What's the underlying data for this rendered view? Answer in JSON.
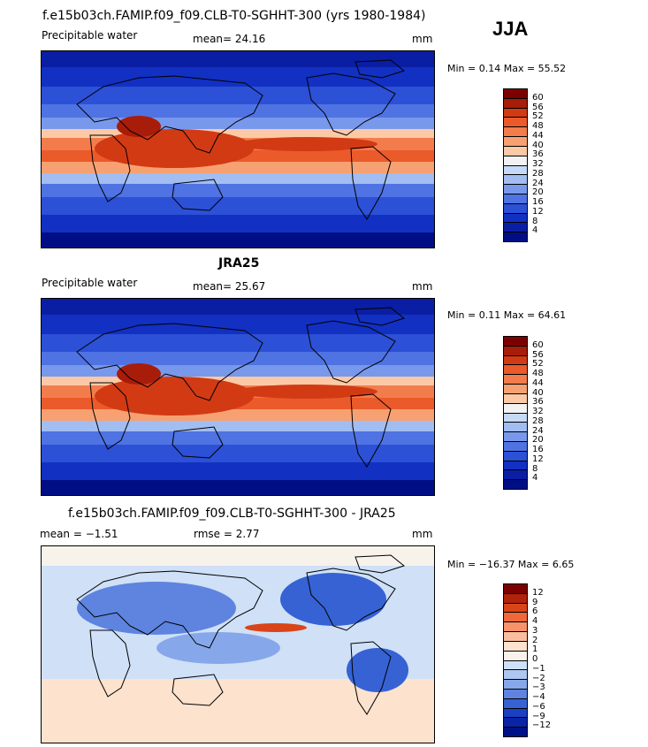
{
  "season": "JJA",
  "panels": [
    {
      "title": "f.e15b03ch.FAMIP.f09_f09.CLB-T0-SGHHT-300 (yrs 1980-1984)",
      "variable": "Precipitable water",
      "stat_text": "mean=  24.16",
      "units": "mm",
      "minmax": "Min =    0.14  Max =   55.52",
      "scale": "abs",
      "colorbar_labels": [
        "60",
        "56",
        "52",
        "48",
        "44",
        "40",
        "36",
        "32",
        "28",
        "24",
        "20",
        "16",
        "12",
        "8",
        "4"
      ]
    },
    {
      "title": "JRA25",
      "variable": "Precipitable water",
      "stat_text": "mean=  25.67",
      "units": "mm",
      "minmax": "Min =    0.11  Max =   64.61",
      "scale": "abs",
      "colorbar_labels": [
        "60",
        "56",
        "52",
        "48",
        "44",
        "40",
        "36",
        "32",
        "28",
        "24",
        "20",
        "16",
        "12",
        "8",
        "4"
      ]
    },
    {
      "title": "f.e15b03ch.FAMIP.f09_f09.CLB-T0-SGHHT-300 - JRA25",
      "variable": "",
      "stat_left": "mean =   −1.51",
      "stat_mid": "rmse =    2.77",
      "units": "mm",
      "minmax": "Min = −16.37  Max =    6.65",
      "scale": "diff",
      "colorbar_labels": [
        "12",
        "9",
        "6",
        "4",
        "3",
        "2",
        "1",
        "0",
        "−1",
        "−2",
        "−3",
        "−4",
        "−6",
        "−9",
        "−12"
      ]
    }
  ],
  "colors": {
    "abs_scale": [
      "#7d0000",
      "#a81c0a",
      "#d23a14",
      "#eb5a2a",
      "#f27c4c",
      "#f7a172",
      "#fcc9a6",
      "#f2f2f2",
      "#c6d9f7",
      "#a1bdf2",
      "#7898ec",
      "#4f73e2",
      "#2c50d6",
      "#1230c2",
      "#0a1ea4",
      "#000e86"
    ],
    "diff_scale": [
      "#7d0000",
      "#b0220c",
      "#d94418",
      "#f0673a",
      "#f7926a",
      "#fbbda0",
      "#fde2cd",
      "#f7f2ea",
      "#cfe0f7",
      "#aec7f1",
      "#86a8ea",
      "#5e84e0",
      "#3662d4",
      "#1a3fc4",
      "#0b24a5",
      "#001088"
    ]
  }
}
